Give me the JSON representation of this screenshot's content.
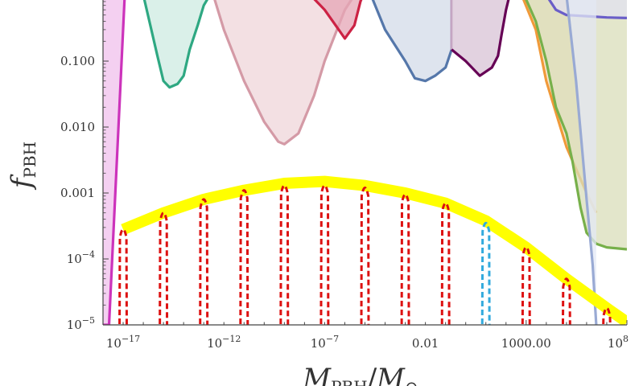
{
  "chart_data": {
    "type": "line",
    "xscale": "log",
    "yscale": "log",
    "xlim": [
      1e-18,
      100000000.0
    ],
    "ylim": [
      1e-05,
      1
    ],
    "xlabel": {
      "main": "M",
      "sub": "PBH",
      "sep": "/",
      "main2": "M",
      "sub2": "⊙"
    },
    "ylabel": {
      "main": "f",
      "sub": "PBH"
    },
    "x_ticks": [
      {
        "value": 1e-17,
        "base": "10",
        "exp": "−17"
      },
      {
        "value": 1e-12,
        "base": "10",
        "exp": "−12"
      },
      {
        "value": 1e-07,
        "base": "10",
        "exp": "−7"
      },
      {
        "value": 0.01,
        "text": "0.01"
      },
      {
        "value": 1000,
        "text": "1000.00"
      },
      {
        "value": 100000000.0,
        "base": "10",
        "exp": "8"
      }
    ],
    "y_ticks": [
      {
        "value": 0.1,
        "text": "0.100"
      },
      {
        "value": 0.01,
        "text": "0.010"
      },
      {
        "value": 0.001,
        "text": "0.001"
      },
      {
        "value": 0.0001,
        "base": "10",
        "exp": "−4"
      },
      {
        "value": 1e-05,
        "base": "10",
        "exp": "−5"
      }
    ],
    "constraints": [
      {
        "color": "#cc33bb",
        "fill": "#f0c0ec",
        "points": [
          [
            1e-18,
            1e-05
          ],
          [
            2e-18,
            1e-05
          ],
          [
            1.2e-17,
            1
          ],
          [
            1e-18,
            1
          ]
        ]
      },
      {
        "color": "#2ea882",
        "fill": "#cdebe2",
        "points": [
          [
            1e-16,
            1
          ],
          [
            5e-16,
            0.12
          ],
          [
            1e-15,
            0.05
          ],
          [
            2e-15,
            0.04
          ],
          [
            5e-15,
            0.045
          ],
          [
            1e-14,
            0.06
          ],
          [
            2e-14,
            0.15
          ],
          [
            5e-14,
            0.35
          ],
          [
            1e-13,
            0.7
          ],
          [
            2e-13,
            1
          ]
        ]
      },
      {
        "color": "#d49aa6",
        "fill": "#efd6d9",
        "points": [
          [
            3e-13,
            1
          ],
          [
            1e-12,
            0.3
          ],
          [
            1e-11,
            0.05
          ],
          [
            1e-10,
            0.012
          ],
          [
            5e-10,
            0.006
          ],
          [
            1e-09,
            0.0055
          ],
          [
            5e-09,
            0.008
          ],
          [
            3e-08,
            0.03
          ],
          [
            1e-07,
            0.1
          ],
          [
            1e-06,
            0.6
          ],
          [
            3e-06,
            1
          ]
        ]
      },
      {
        "color": "#cc2244",
        "fill": "#e6a6b6",
        "points": [
          [
            2e-08,
            1
          ],
          [
            1e-07,
            0.6
          ],
          [
            5e-07,
            0.3
          ],
          [
            1e-06,
            0.22
          ],
          [
            3e-06,
            0.35
          ],
          [
            6e-06,
            0.8
          ],
          [
            8e-06,
            1
          ]
        ]
      },
      {
        "color": "#5577aa",
        "fill": "#d3dbe8",
        "points": [
          [
            2e-05,
            1
          ],
          [
            0.0001,
            0.3
          ],
          [
            0.001,
            0.1
          ],
          [
            0.003,
            0.055
          ],
          [
            0.01,
            0.05
          ],
          [
            0.03,
            0.06
          ],
          [
            0.1,
            0.08
          ],
          [
            0.2,
            0.15
          ]
        ]
      },
      {
        "color": "#bb99bb",
        "fill": "#e3d3e3",
        "points": [
          [
            0.2,
            1
          ],
          [
            0.2,
            0.15
          ]
        ]
      },
      {
        "color": "#660055",
        "fill": "#d8c3d6",
        "points": [
          [
            0.2,
            0.15
          ],
          [
            1,
            0.1
          ],
          [
            5,
            0.06
          ],
          [
            20,
            0.08
          ],
          [
            40,
            0.12
          ],
          [
            60,
            0.25
          ],
          [
            100,
            0.6
          ],
          [
            150,
            1
          ]
        ]
      },
      {
        "color": "#f09a3a",
        "fill": "#f5dcbf",
        "points": [
          [
            600,
            1
          ],
          [
            3000.0,
            0.3
          ],
          [
            10000.0,
            0.05
          ],
          [
            50000.0,
            0.01
          ],
          [
            100000.0,
            0.005
          ],
          [
            1000000.0,
            0.001
          ],
          [
            3000000.0,
            0.0005
          ]
        ]
      },
      {
        "color": "#77b04a",
        "fill": "#d9ddb9",
        "points": [
          [
            800,
            1
          ],
          [
            3000.0,
            0.4
          ],
          [
            10000.0,
            0.1
          ],
          [
            30000.0,
            0.02
          ],
          [
            100000.0,
            0.008
          ],
          [
            200000.0,
            0.003
          ],
          [
            500000.0,
            0.0006
          ],
          [
            1000000.0,
            0.00025
          ],
          [
            3000000.0,
            0.00017
          ],
          [
            10000000.0,
            0.00015
          ],
          [
            100000000.0,
            0.00014
          ]
        ]
      },
      {
        "color": "#6a5ec8",
        "fill": "#e2e1f0",
        "points": [
          [
            10000.0,
            1
          ],
          [
            30000.0,
            0.6
          ],
          [
            100000.0,
            0.5
          ],
          [
            1000000.0,
            0.48
          ],
          [
            10000000.0,
            0.46
          ],
          [
            100000000.0,
            0.45
          ]
        ]
      },
      {
        "color": "#99aad4",
        "fill": "#e3e8f5",
        "points": [
          [
            100000.0,
            1
          ],
          [
            300000.0,
            0.05
          ],
          [
            1000000.0,
            0.0008
          ],
          [
            2000000.0,
            8e-05
          ],
          [
            3000000.0,
            1e-05
          ]
        ]
      }
    ],
    "envelope": {
      "color": "#ffff00",
      "points": [
        [
          1e-17,
          0.00028
        ],
        [
          1e-15,
          0.0005
        ],
        [
          1e-13,
          0.0008
        ],
        [
          1e-11,
          0.0011
        ],
        [
          1e-09,
          0.0014
        ],
        [
          1e-07,
          0.0015
        ],
        [
          1e-05,
          0.0013
        ],
        [
          0.001,
          0.001
        ],
        [
          0.1,
          0.0007
        ],
        [
          10,
          0.00038
        ],
        [
          1000.0,
          0.00015
        ],
        [
          100000.0,
          5e-05
        ],
        [
          10000000.0,
          1.8e-05
        ],
        [
          100000000.0,
          1.1e-05
        ]
      ]
    },
    "mass_functions": {
      "centers": [
        1e-17,
        1e-15,
        1e-13,
        1e-11,
        1e-09,
        1e-07,
        1e-05,
        0.001,
        0.1,
        10,
        1000.0,
        100000.0,
        10000000.0
      ],
      "peaks": [
        0.00028,
        0.0005,
        0.0008,
        0.0011,
        0.0013,
        0.0013,
        0.0012,
        0.00095,
        0.0007,
        0.00035,
        0.00015,
        5e-05,
        1.8e-05
      ],
      "colors": [
        "#dd1111",
        "#dd1111",
        "#dd1111",
        "#dd1111",
        "#dd1111",
        "#dd1111",
        "#dd1111",
        "#dd1111",
        "#dd1111",
        "#33aadd",
        "#dd1111",
        "#dd1111",
        "#dd1111"
      ]
    }
  }
}
